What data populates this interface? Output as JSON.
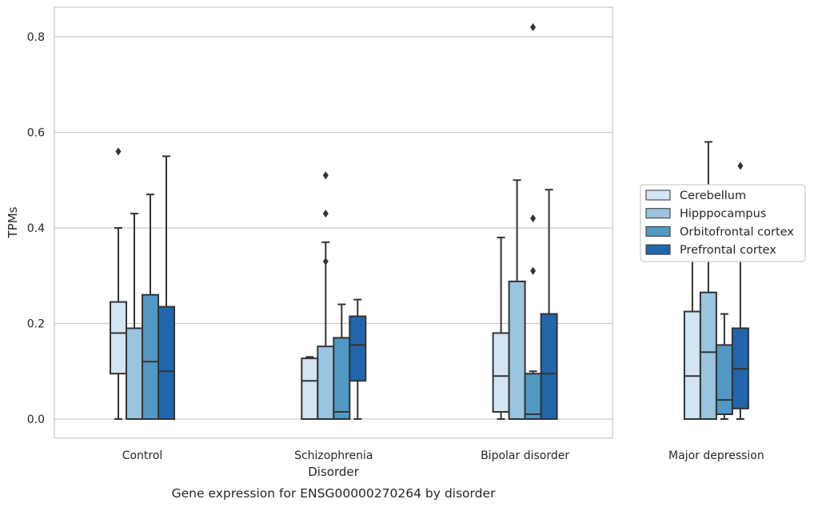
{
  "chart_data": {
    "type": "box",
    "caption": "Gene expression for ENSG00000270264 by disorder",
    "xlabel": "Disorder",
    "ylabel": "TPMs",
    "ylim": [
      -0.04,
      0.86
    ],
    "yticks": [
      0.0,
      0.2,
      0.4,
      0.6,
      0.8
    ],
    "ytick_labels": [
      "0.0",
      "0.2",
      "0.4",
      "0.6",
      "0.8"
    ],
    "grid": "horizontal",
    "legend_placement": "center-right, outside plot",
    "categories": [
      "Control",
      "Schizophrenia",
      "Bipolar disorder",
      "Major depression"
    ],
    "series": [
      {
        "name": "Cerebellum",
        "color": "#d3e4f3",
        "boxes": [
          {
            "whisker_low": 0.0,
            "q1": 0.095,
            "median": 0.18,
            "q3": 0.245,
            "whisker_high": 0.4,
            "outliers": [
              0.56
            ]
          },
          {
            "whisker_low": 0.0,
            "q1": 0.0,
            "median": 0.08,
            "q3": 0.127,
            "whisker_high": 0.13,
            "outliers": []
          },
          {
            "whisker_low": 0.0,
            "q1": 0.015,
            "median": 0.09,
            "q3": 0.18,
            "whisker_high": 0.38,
            "outliers": []
          },
          {
            "whisker_low": 0.0,
            "q1": 0.0,
            "median": 0.09,
            "q3": 0.225,
            "whisker_high": 0.42,
            "outliers": []
          }
        ]
      },
      {
        "name": "Hipppocampus",
        "color": "#9ac4df",
        "boxes": [
          {
            "whisker_low": 0.0,
            "q1": 0.0,
            "median": 0.0,
            "q3": 0.19,
            "whisker_high": 0.43,
            "outliers": []
          },
          {
            "whisker_low": 0.0,
            "q1": 0.0,
            "median": 0.0,
            "q3": 0.152,
            "whisker_high": 0.37,
            "outliers": [
              0.33,
              0.43,
              0.51
            ]
          },
          {
            "whisker_low": 0.0,
            "q1": 0.0,
            "median": 0.0,
            "q3": 0.288,
            "whisker_high": 0.5,
            "outliers": []
          },
          {
            "whisker_low": 0.0,
            "q1": 0.0,
            "median": 0.14,
            "q3": 0.265,
            "whisker_high": 0.58,
            "outliers": []
          }
        ]
      },
      {
        "name": "Orbitofrontal cortex",
        "color": "#5198c5",
        "boxes": [
          {
            "whisker_low": 0.0,
            "q1": 0.0,
            "median": 0.12,
            "q3": 0.26,
            "whisker_high": 0.47,
            "outliers": []
          },
          {
            "whisker_low": 0.0,
            "q1": 0.0,
            "median": 0.015,
            "q3": 0.17,
            "whisker_high": 0.24,
            "outliers": []
          },
          {
            "whisker_low": 0.0,
            "q1": 0.0,
            "median": 0.01,
            "q3": 0.095,
            "whisker_high": 0.1,
            "outliers": [
              0.31,
              0.42,
              0.82
            ]
          },
          {
            "whisker_low": 0.0,
            "q1": 0.01,
            "median": 0.04,
            "q3": 0.155,
            "whisker_high": 0.22,
            "outliers": [
              0.38
            ]
          }
        ]
      },
      {
        "name": "Prefrontal cortex",
        "color": "#2166ac",
        "boxes": [
          {
            "whisker_low": 0.0,
            "q1": 0.0,
            "median": 0.1,
            "q3": 0.235,
            "whisker_high": 0.55,
            "outliers": []
          },
          {
            "whisker_low": 0.0,
            "q1": 0.08,
            "median": 0.155,
            "q3": 0.215,
            "whisker_high": 0.25,
            "outliers": []
          },
          {
            "whisker_low": 0.0,
            "q1": 0.0,
            "median": 0.095,
            "q3": 0.22,
            "whisker_high": 0.48,
            "outliers": []
          },
          {
            "whisker_low": 0.0,
            "q1": 0.022,
            "median": 0.105,
            "q3": 0.19,
            "whisker_high": 0.41,
            "outliers": [
              0.53
            ]
          }
        ]
      }
    ]
  },
  "style": {
    "edge_color": "#333333",
    "grid_color": "#cccccc",
    "frame_color": "#cccccc"
  }
}
